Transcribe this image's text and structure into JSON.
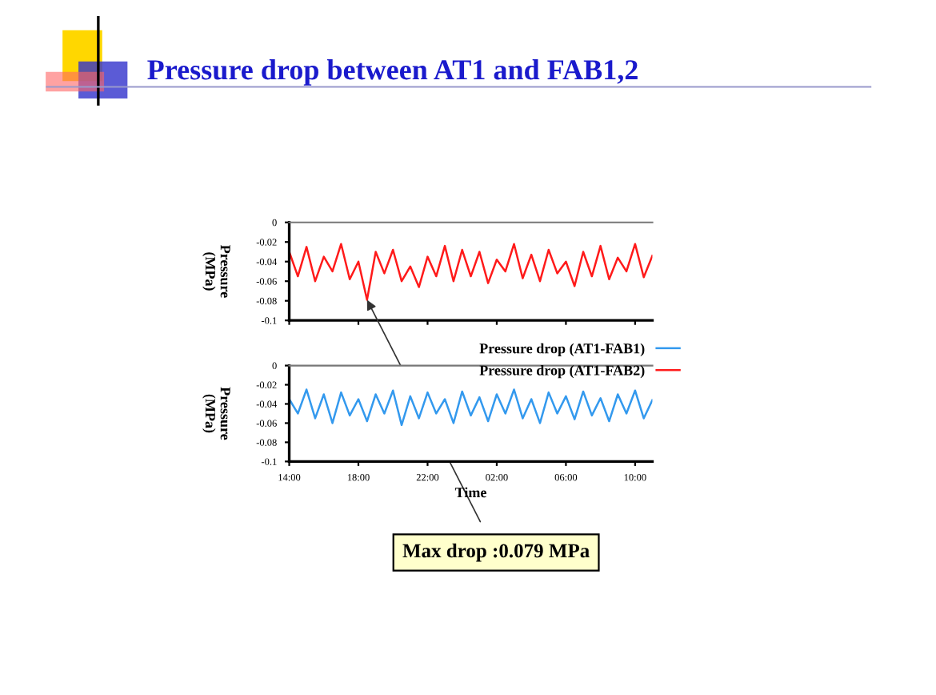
{
  "chart_data": [
    {
      "type": "line",
      "title": "Pressure drop between AT1 and FAB1,2",
      "ylabel": "Pressure\n(MPa)",
      "x": [
        "2000-01-01T14:00",
        "2000-01-01T14:30",
        "2000-01-01T15:00",
        "2000-01-01T15:30",
        "2000-01-01T16:00",
        "2000-01-01T16:30",
        "2000-01-01T17:00",
        "2000-01-01T17:30",
        "2000-01-01T18:00",
        "2000-01-01T18:30",
        "2000-01-01T19:00",
        "2000-01-01T19:30",
        "2000-01-01T20:00",
        "2000-01-01T20:30",
        "2000-01-01T21:00",
        "2000-01-01T21:30",
        "2000-01-01T22:00",
        "2000-01-01T22:30",
        "2000-01-01T23:00",
        "2000-01-01T23:30",
        "2000-01-02T00:00",
        "2000-01-02T00:30",
        "2000-01-02T01:00",
        "2000-01-02T01:30",
        "2000-01-02T02:00",
        "2000-01-02T02:30",
        "2000-01-02T03:00",
        "2000-01-02T03:30",
        "2000-01-02T04:00",
        "2000-01-02T04:30",
        "2000-01-02T05:00",
        "2000-01-02T05:30",
        "2000-01-02T06:00",
        "2000-01-02T06:30",
        "2000-01-02T07:00",
        "2000-01-02T07:30",
        "2000-01-02T08:00",
        "2000-01-02T08:30",
        "2000-01-02T09:00",
        "2000-01-02T09:30",
        "2000-01-02T10:00",
        "2000-01-02T10:30",
        "2000-01-02T11:00"
      ],
      "series": [
        {
          "name": "Pressure drop (AT1-FAB2)",
          "color": "#ff1a1a",
          "values": [
            -0.03,
            -0.055,
            -0.025,
            -0.06,
            -0.035,
            -0.05,
            -0.022,
            -0.058,
            -0.04,
            -0.079,
            -0.03,
            -0.052,
            -0.028,
            -0.06,
            -0.045,
            -0.066,
            -0.035,
            -0.055,
            -0.024,
            -0.06,
            -0.028,
            -0.055,
            -0.03,
            -0.062,
            -0.038,
            -0.05,
            -0.022,
            -0.057,
            -0.033,
            -0.06,
            -0.028,
            -0.052,
            -0.04,
            -0.065,
            -0.03,
            -0.055,
            -0.024,
            -0.058,
            -0.036,
            -0.05,
            -0.022,
            -0.056,
            -0.034
          ]
        }
      ],
      "xlim": [
        "2000-01-01T14:00",
        "2000-01-02T11:00"
      ],
      "xticks": [
        {
          "value": "2000-01-01T14:00",
          "label": null
        },
        {
          "value": "2000-01-01T18:00",
          "label": null
        },
        {
          "value": "2000-01-01T22:00",
          "label": null
        },
        {
          "value": "2000-01-02T02:00",
          "label": null
        },
        {
          "value": "2000-01-02T06:00",
          "label": null
        },
        {
          "value": "2000-01-02T10:00",
          "label": null
        }
      ],
      "ylim": [
        -0.1,
        0
      ],
      "yticks": [
        0,
        -0.02,
        -0.04,
        -0.06,
        -0.08,
        -0.1
      ],
      "tick_labels": "y",
      "legend": "bottom right",
      "grid": false,
      "annotations": [
        {
          "text": "Max drop :0.079 MPa",
          "x": "2000-01-01T18:30",
          "y": -0.079
        }
      ]
    },
    {
      "type": "line",
      "ylabel": "Pressure\n(MPa)",
      "xlabel": "Time",
      "x": [
        "2000-01-01T14:00",
        "2000-01-01T14:30",
        "2000-01-01T15:00",
        "2000-01-01T15:30",
        "2000-01-01T16:00",
        "2000-01-01T16:30",
        "2000-01-01T17:00",
        "2000-01-01T17:30",
        "2000-01-01T18:00",
        "2000-01-01T18:30",
        "2000-01-01T19:00",
        "2000-01-01T19:30",
        "2000-01-01T20:00",
        "2000-01-01T20:30",
        "2000-01-01T21:00",
        "2000-01-01T21:30",
        "2000-01-01T22:00",
        "2000-01-01T22:30",
        "2000-01-01T23:00",
        "2000-01-01T23:30",
        "2000-01-02T00:00",
        "2000-01-02T00:30",
        "2000-01-02T01:00",
        "2000-01-02T01:30",
        "2000-01-02T02:00",
        "2000-01-02T02:30",
        "2000-01-02T03:00",
        "2000-01-02T03:30",
        "2000-01-02T04:00",
        "2000-01-02T04:30",
        "2000-01-02T05:00",
        "2000-01-02T05:30",
        "2000-01-02T06:00",
        "2000-01-02T06:30",
        "2000-01-02T07:00",
        "2000-01-02T07:30",
        "2000-01-02T08:00",
        "2000-01-02T08:30",
        "2000-01-02T09:00",
        "2000-01-02T09:30",
        "2000-01-02T10:00",
        "2000-01-02T10:30",
        "2000-01-02T11:00"
      ],
      "series": [
        {
          "name": "Pressure drop (AT1-FAB1)",
          "color": "#3399ee",
          "values": [
            -0.035,
            -0.05,
            -0.025,
            -0.055,
            -0.03,
            -0.06,
            -0.028,
            -0.052,
            -0.035,
            -0.058,
            -0.03,
            -0.05,
            -0.026,
            -0.062,
            -0.032,
            -0.055,
            -0.028,
            -0.05,
            -0.035,
            -0.06,
            -0.027,
            -0.052,
            -0.033,
            -0.058,
            -0.03,
            -0.05,
            -0.025,
            -0.055,
            -0.035,
            -0.06,
            -0.028,
            -0.05,
            -0.032,
            -0.056,
            -0.027,
            -0.052,
            -0.034,
            -0.058,
            -0.03,
            -0.05,
            -0.026,
            -0.055,
            -0.036
          ]
        }
      ],
      "xlim": [
        "2000-01-01T14:00",
        "2000-01-02T11:00"
      ],
      "xticks": [
        {
          "value": "2000-01-01T14:00",
          "label": "14:00"
        },
        {
          "value": "2000-01-01T18:00",
          "label": "18:00"
        },
        {
          "value": "2000-01-01T22:00",
          "label": "22:00"
        },
        {
          "value": "2000-01-02T02:00",
          "label": "02:00"
        },
        {
          "value": "2000-01-02T06:00",
          "label": "06:00"
        },
        {
          "value": "2000-01-02T10:00",
          "label": "10:00"
        }
      ],
      "ylim": [
        -0.1,
        0
      ],
      "yticks": [
        0,
        -0.02,
        -0.04,
        -0.06,
        -0.08,
        -0.1
      ],
      "grid": false
    }
  ]
}
